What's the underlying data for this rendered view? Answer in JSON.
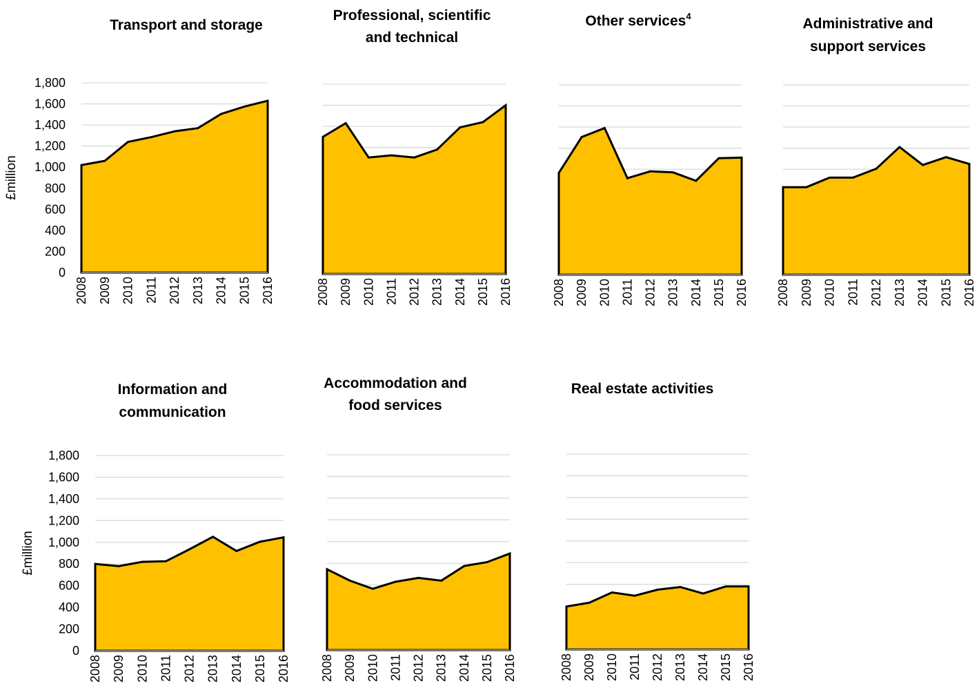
{
  "colors": {
    "fill": "#FFC000",
    "outline": "#000000",
    "grid": "#D9D9D9"
  },
  "chart_data": [
    {
      "type": "area",
      "title": "Transport and storage",
      "ylabel": "£million",
      "ylim": [
        0,
        1800
      ],
      "yticks": [
        "0",
        "200",
        "400",
        "600",
        "800",
        "1,000",
        "1,200",
        "1,400",
        "1,600",
        "1,800"
      ],
      "grid": true,
      "x": [
        "2008",
        "2009",
        "2010",
        "2011",
        "2012",
        "2013",
        "2014",
        "2015",
        "2016"
      ],
      "values": [
        1020,
        1060,
        1240,
        1285,
        1340,
        1370,
        1505,
        1575,
        1630
      ]
    },
    {
      "type": "area",
      "title": "Professional, scientific and technical",
      "ylim": [
        0,
        1800
      ],
      "grid": true,
      "x": [
        "2008",
        "2009",
        "2010",
        "2011",
        "2012",
        "2013",
        "2014",
        "2015",
        "2016"
      ],
      "values": [
        1300,
        1430,
        1105,
        1125,
        1105,
        1180,
        1390,
        1440,
        1600
      ]
    },
    {
      "type": "area",
      "title": "Other services",
      "title_sup": "4",
      "ylim": [
        0,
        1800
      ],
      "grid": true,
      "x": [
        "2008",
        "2009",
        "2010",
        "2011",
        "2012",
        "2013",
        "2014",
        "2015",
        "2016"
      ],
      "values": [
        965,
        1305,
        1390,
        915,
        980,
        970,
        890,
        1105,
        1110
      ]
    },
    {
      "type": "area",
      "title": "Administrative and support services",
      "ylim": [
        0,
        1800
      ],
      "grid": true,
      "x": [
        "2008",
        "2009",
        "2010",
        "2011",
        "2012",
        "2013",
        "2014",
        "2015",
        "2016"
      ],
      "values": [
        830,
        830,
        920,
        920,
        1005,
        1210,
        1040,
        1115,
        1050
      ]
    },
    {
      "type": "area",
      "title": "Information and communication",
      "ylabel": "£million",
      "ylim": [
        0,
        1800
      ],
      "yticks": [
        "0",
        "200",
        "400",
        "600",
        "800",
        "1,000",
        "1,200",
        "1,400",
        "1,600",
        "1,800"
      ],
      "grid": true,
      "x": [
        "2008",
        "2009",
        "2010",
        "2011",
        "2012",
        "2013",
        "2014",
        "2015",
        "2016"
      ],
      "values": [
        800,
        780,
        820,
        825,
        935,
        1050,
        920,
        1005,
        1045
      ]
    },
    {
      "type": "area",
      "title": "Accommodation and food services",
      "ylim": [
        0,
        1800
      ],
      "grid": true,
      "x": [
        "2008",
        "2009",
        "2010",
        "2011",
        "2012",
        "2013",
        "2014",
        "2015",
        "2016"
      ],
      "values": [
        745,
        640,
        565,
        630,
        665,
        640,
        775,
        810,
        890
      ]
    },
    {
      "type": "area",
      "title": "Real estate activities",
      "ylim": [
        0,
        1800
      ],
      "grid": true,
      "x": [
        "2008",
        "2009",
        "2010",
        "2011",
        "2012",
        "2013",
        "2014",
        "2015",
        "2016"
      ],
      "values": [
        395,
        430,
        525,
        495,
        550,
        575,
        515,
        580,
        580
      ]
    }
  ]
}
